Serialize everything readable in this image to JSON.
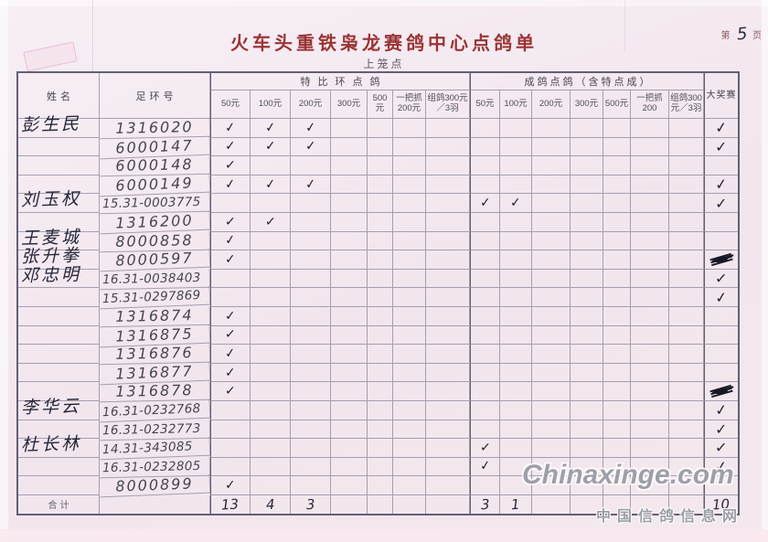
{
  "page": {
    "title": "火车头重铁枭龙赛鸽中心点鸽单",
    "subtitle": "上笼点",
    "page_label_prefix": "第",
    "page_number": "5",
    "page_label_suffix": "页"
  },
  "watermark": {
    "line1": "Chinaxinge.com",
    "line2": "中国信鸽信息网"
  },
  "glyphs": {
    "check": "✓"
  },
  "colors": {
    "paper": "#f3e8f0",
    "title_red": "#9a3434",
    "ink": "#27273a",
    "grid": "#565670"
  },
  "table": {
    "header": {
      "name": "姓名",
      "ring": "足环号",
      "group_special": "特比环点鸽",
      "group_adult": "成鸽点鸽（含特点成）",
      "grand": "大奖赛",
      "special_cols": [
        "50元",
        "100元",
        "200元",
        "300元",
        "500元",
        "一把抓200元",
        "组鸽300元／3羽"
      ],
      "adult_cols": [
        "50元",
        "100元",
        "200元",
        "300元",
        "500元",
        "一把抓200",
        "组鸽300元／3羽"
      ]
    },
    "total_label": "合计",
    "rows": [
      {
        "name": "彭生民",
        "ring": "1316020",
        "marks": {
          "tb50": "check",
          "tb100": "check",
          "tb200": "check",
          "grand": "check"
        }
      },
      {
        "ring": "6000147",
        "marks": {
          "tb50": "check",
          "tb100": "check",
          "tb200": "check",
          "grand": "check"
        }
      },
      {
        "ring": "6000148",
        "marks": {
          "tb50": "check"
        }
      },
      {
        "ring": "6000149",
        "marks": {
          "tb50": "check",
          "tb100": "check",
          "tb200": "check",
          "grand": "check"
        }
      },
      {
        "name": "刘玉权",
        "ring": "15.31-0003775",
        "marks": {
          "cg50": "check",
          "cg100": "check",
          "grand": "check"
        }
      },
      {
        "ring": "1316200",
        "marks": {
          "tb50": "check",
          "tb100": "check"
        }
      },
      {
        "name": "王麦城",
        "ring": "8000858",
        "marks": {
          "tb50": "check"
        }
      },
      {
        "name": "张升拳",
        "ring": "8000597",
        "marks": {
          "tb50": "check",
          "grand": "scribble"
        }
      },
      {
        "name": "邓忠明",
        "ring": "16.31-0038403",
        "marks": {
          "grand": "check"
        }
      },
      {
        "ring": "15.31-0297869",
        "marks": {
          "grand": "check"
        }
      },
      {
        "ring": "1316874",
        "marks": {
          "tb50": "check"
        }
      },
      {
        "ring": "1316875",
        "marks": {
          "tb50": "check"
        }
      },
      {
        "ring": "1316876",
        "marks": {
          "tb50": "check"
        }
      },
      {
        "ring": "1316877",
        "marks": {
          "tb50": "check"
        }
      },
      {
        "ring": "1316878",
        "marks": {
          "tb50": "check",
          "grand": "scribble"
        }
      },
      {
        "name": "李华云",
        "ring": "16.31-0232768",
        "marks": {
          "grand": "check"
        }
      },
      {
        "ring": "16.31-0232773",
        "marks": {
          "grand": "check"
        }
      },
      {
        "name": "杜长林",
        "ring": "14.31-343085",
        "marks": {
          "cg50": "check",
          "grand": "check"
        }
      },
      {
        "ring": "16.31-0232805",
        "marks": {
          "cg50": "check",
          "grand": "check"
        }
      },
      {
        "ring": "8000899",
        "marks": {
          "tb50": "check"
        }
      }
    ],
    "totals": {
      "tb50": "13",
      "tb100": "4",
      "tb200": "3",
      "cg50": "3",
      "cg100": "1",
      "grand": "10"
    }
  }
}
